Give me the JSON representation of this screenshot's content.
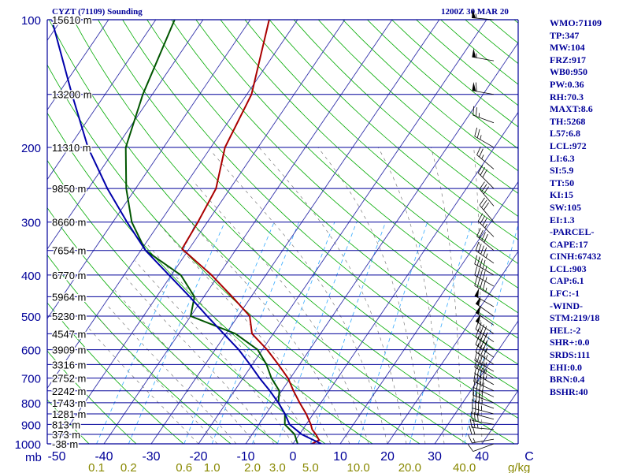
{
  "header": {
    "station_title": "CYZT (71109) Sounding",
    "time_label": "1200Z 30 MAR 20"
  },
  "indices": [
    "WMO:71109",
    "TP:347",
    "MW:104",
    "FRZ:917",
    "WB0:950",
    "PW:0.36",
    "RH:70.3",
    "MAXT:8.6",
    "TH:5268",
    "L57:6.8",
    "LCL:972",
    "LI:6.3",
    "SI:5.9",
    "TT:50",
    "KI:15",
    "SW:105",
    "EI:1.3",
    "-PARCEL-",
    "CAPE:17",
    "CINH:67432",
    "LCL:903",
    "CAP:6.1",
    "LFC:-1",
    "-WIND-",
    "STM:219/18",
    "HEL:-2",
    "SHR+:0.0",
    "SRDS:111",
    "EHI:0.0",
    "BRN:0.4",
    "BSHR:40"
  ],
  "colors": {
    "isobar": "#000099",
    "isotherm": "#3333aa",
    "dry_adiabat": "#00aa00",
    "moist_adiabat": "#666666",
    "mixing_ratio": "#33aaff",
    "temperature": "#aa0000",
    "dewpoint": "#005500",
    "parcel": "#0000aa",
    "text": "#000099",
    "mixing_label": "#888800"
  },
  "chart_data": {
    "type": "line",
    "pressure_levels": [
      100,
      200,
      300,
      400,
      500,
      600,
      700,
      800,
      900,
      1000
    ],
    "pressure_axis_unit": "mb",
    "temperature_ticks": [
      -50,
      -40,
      -30,
      -20,
      -10,
      0,
      10,
      20,
      30,
      40,
      50
    ],
    "temperature_tick_labels": [
      "-50",
      "-40",
      "-30",
      "-20",
      "-10",
      "0",
      "10",
      "20",
      "30",
      "40",
      "C"
    ],
    "height_labels": [
      {
        "p": 100,
        "label": "15610 m"
      },
      {
        "p": 150,
        "label": "13200 m"
      },
      {
        "p": 200,
        "label": "11310 m"
      },
      {
        "p": 250,
        "label": "9850 m"
      },
      {
        "p": 300,
        "label": "8660 m"
      },
      {
        "p": 350,
        "label": "7654 m"
      },
      {
        "p": 400,
        "label": "6770 m"
      },
      {
        "p": 450,
        "label": "5964 m"
      },
      {
        "p": 500,
        "label": "5230 m"
      },
      {
        "p": 550,
        "label": "4547 m"
      },
      {
        "p": 600,
        "label": "3909 m"
      },
      {
        "p": 650,
        "label": "3316 m"
      },
      {
        "p": 700,
        "label": "2752 m"
      },
      {
        "p": 750,
        "label": "2242 m"
      },
      {
        "p": 800,
        "label": "1743 m"
      },
      {
        "p": 850,
        "label": "1281 m"
      },
      {
        "p": 900,
        "label": "813 m"
      },
      {
        "p": 950,
        "label": "373 m"
      },
      {
        "p": 1000,
        "label": "-38 m"
      }
    ],
    "mixing_ratio_labels": [
      "0.1",
      "0.2",
      "0.6",
      "1.0",
      "2.0",
      "3.0",
      "5.0",
      "10.0",
      "20.0",
      "40.0"
    ],
    "mixing_ratio_values": [
      0.1,
      0.2,
      0.6,
      1.0,
      2.0,
      3.0,
      5.0,
      10.0,
      20.0,
      40.0
    ],
    "mixing_ratio_unit": "g/kg",
    "series": [
      {
        "key": "temperature",
        "points": [
          {
            "p": 1000,
            "t": 4.0
          },
          {
            "p": 980,
            "t": 5.0
          },
          {
            "p": 950,
            "t": 3.5
          },
          {
            "p": 925,
            "t": 2.0
          },
          {
            "p": 900,
            "t": 1.0
          },
          {
            "p": 850,
            "t": -1.5
          },
          {
            "p": 800,
            "t": -4.5
          },
          {
            "p": 750,
            "t": -7.5
          },
          {
            "p": 700,
            "t": -10.5
          },
          {
            "p": 650,
            "t": -14.5
          },
          {
            "p": 600,
            "t": -19.0
          },
          {
            "p": 550,
            "t": -24.5
          },
          {
            "p": 500,
            "t": -27.5
          },
          {
            "p": 450,
            "t": -34.0
          },
          {
            "p": 400,
            "t": -41.5
          },
          {
            "p": 347,
            "t": -51.5
          },
          {
            "p": 300,
            "t": -52.0
          },
          {
            "p": 250,
            "t": -53.0
          },
          {
            "p": 200,
            "t": -57.0
          },
          {
            "p": 150,
            "t": -59.0
          },
          {
            "p": 100,
            "t": -66.0
          }
        ]
      },
      {
        "key": "dewpoint",
        "points": [
          {
            "p": 1000,
            "t": 1.0
          },
          {
            "p": 950,
            "t": -1.0
          },
          {
            "p": 900,
            "t": -4.5
          },
          {
            "p": 850,
            "t": -6.0
          },
          {
            "p": 800,
            "t": -9.0
          },
          {
            "p": 750,
            "t": -10.5
          },
          {
            "p": 700,
            "t": -14.0
          },
          {
            "p": 650,
            "t": -17.0
          },
          {
            "p": 600,
            "t": -21.0
          },
          {
            "p": 550,
            "t": -28.0
          },
          {
            "p": 500,
            "t": -40.0
          },
          {
            "p": 450,
            "t": -42.0
          },
          {
            "p": 400,
            "t": -48.0
          },
          {
            "p": 350,
            "t": -59.0
          },
          {
            "p": 300,
            "t": -66.0
          },
          {
            "p": 250,
            "t": -72.0
          },
          {
            "p": 200,
            "t": -78.0
          },
          {
            "p": 150,
            "t": -82.0
          },
          {
            "p": 100,
            "t": -86.0
          }
        ]
      },
      {
        "key": "parcel",
        "points": [
          {
            "p": 1000,
            "t": 6.0
          },
          {
            "p": 950,
            "t": 0.5
          },
          {
            "p": 900,
            "t": -3.5
          },
          {
            "p": 850,
            "t": -6.0
          },
          {
            "p": 800,
            "t": -9.0
          },
          {
            "p": 750,
            "t": -12.5
          },
          {
            "p": 700,
            "t": -16.5
          },
          {
            "p": 650,
            "t": -20.5
          },
          {
            "p": 600,
            "t": -25.0
          },
          {
            "p": 550,
            "t": -30.5
          },
          {
            "p": 500,
            "t": -36.5
          },
          {
            "p": 450,
            "t": -43.0
          },
          {
            "p": 400,
            "t": -50.5
          },
          {
            "p": 350,
            "t": -59.0
          },
          {
            "p": 300,
            "t": -67.0
          },
          {
            "p": 250,
            "t": -76.0
          },
          {
            "p": 200,
            "t": -86.0
          },
          {
            "p": 150,
            "t": -97.0
          },
          {
            "p": 100,
            "t": -112.0
          }
        ]
      }
    ],
    "wind_barbs": [
      {
        "p": 1000,
        "dir": 250,
        "spd": 10
      },
      {
        "p": 975,
        "dir": 260,
        "spd": 15
      },
      {
        "p": 950,
        "dir": 270,
        "spd": 20
      },
      {
        "p": 925,
        "dir": 275,
        "spd": 25
      },
      {
        "p": 900,
        "dir": 280,
        "spd": 30
      },
      {
        "p": 875,
        "dir": 285,
        "spd": 30
      },
      {
        "p": 850,
        "dir": 285,
        "spd": 35
      },
      {
        "p": 825,
        "dir": 290,
        "spd": 35
      },
      {
        "p": 800,
        "dir": 290,
        "spd": 40
      },
      {
        "p": 775,
        "dir": 295,
        "spd": 40
      },
      {
        "p": 750,
        "dir": 295,
        "spd": 40
      },
      {
        "p": 725,
        "dir": 300,
        "spd": 45
      },
      {
        "p": 700,
        "dir": 300,
        "spd": 45
      },
      {
        "p": 675,
        "dir": 300,
        "spd": 45
      },
      {
        "p": 650,
        "dir": 305,
        "spd": 45
      },
      {
        "p": 625,
        "dir": 305,
        "spd": 45
      },
      {
        "p": 600,
        "dir": 305,
        "spd": 45
      },
      {
        "p": 575,
        "dir": 305,
        "spd": 45
      },
      {
        "p": 550,
        "dir": 305,
        "spd": 50
      },
      {
        "p": 525,
        "dir": 305,
        "spd": 50
      },
      {
        "p": 500,
        "dir": 305,
        "spd": 50
      },
      {
        "p": 475,
        "dir": 300,
        "spd": 50
      },
      {
        "p": 450,
        "dir": 300,
        "spd": 45
      },
      {
        "p": 425,
        "dir": 300,
        "spd": 45
      },
      {
        "p": 400,
        "dir": 300,
        "spd": 45
      },
      {
        "p": 375,
        "dir": 305,
        "spd": 45
      },
      {
        "p": 350,
        "dir": 310,
        "spd": 40
      },
      {
        "p": 325,
        "dir": 315,
        "spd": 35
      },
      {
        "p": 300,
        "dir": 320,
        "spd": 30
      },
      {
        "p": 275,
        "dir": 320,
        "spd": 30
      },
      {
        "p": 250,
        "dir": 315,
        "spd": 30
      },
      {
        "p": 225,
        "dir": 310,
        "spd": 25
      },
      {
        "p": 200,
        "dir": 300,
        "spd": 25
      },
      {
        "p": 175,
        "dir": 290,
        "spd": 25
      },
      {
        "p": 150,
        "dir": 280,
        "spd": 60
      },
      {
        "p": 125,
        "dir": 280,
        "spd": 55
      },
      {
        "p": 100,
        "dir": 275,
        "spd": 55
      }
    ]
  }
}
